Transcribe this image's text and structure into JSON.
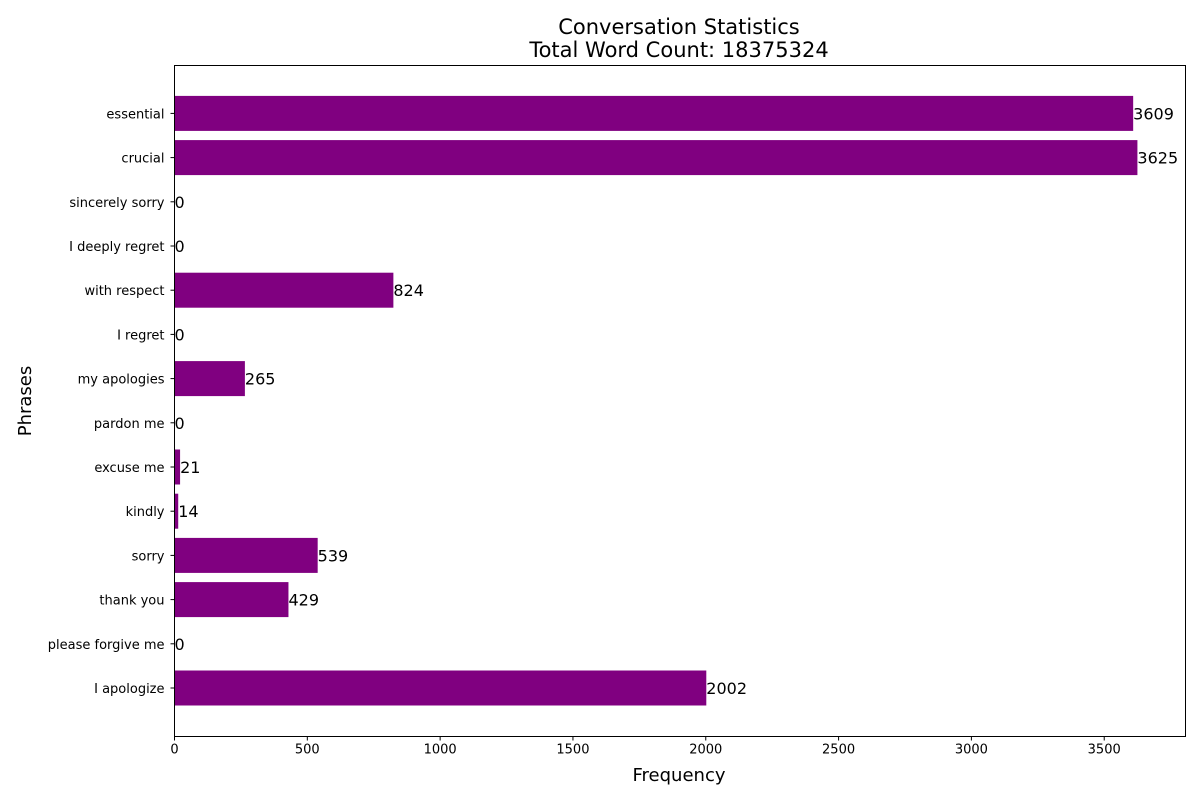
{
  "chart_data": {
    "type": "bar",
    "orientation": "horizontal",
    "title": "Conversation Statistics",
    "subtitle": "Total Word Count: 18375324",
    "xlabel": "Frequency",
    "ylabel": "Phrases",
    "xlim": [
      0,
      3806
    ],
    "xticks": [
      0,
      500,
      1000,
      1500,
      2000,
      2500,
      3000,
      3500
    ],
    "categories": [
      "I apologize",
      "please forgive me",
      "thank you",
      "sorry",
      "kindly",
      "excuse me",
      "pardon me",
      "my apologies",
      "I regret",
      "with respect",
      "I deeply regret",
      "sincerely sorry",
      "crucial",
      "essential"
    ],
    "values": [
      2002,
      0,
      429,
      539,
      14,
      21,
      0,
      265,
      0,
      824,
      0,
      0,
      3625,
      3609
    ],
    "bar_color": "#800080",
    "grid": false
  }
}
